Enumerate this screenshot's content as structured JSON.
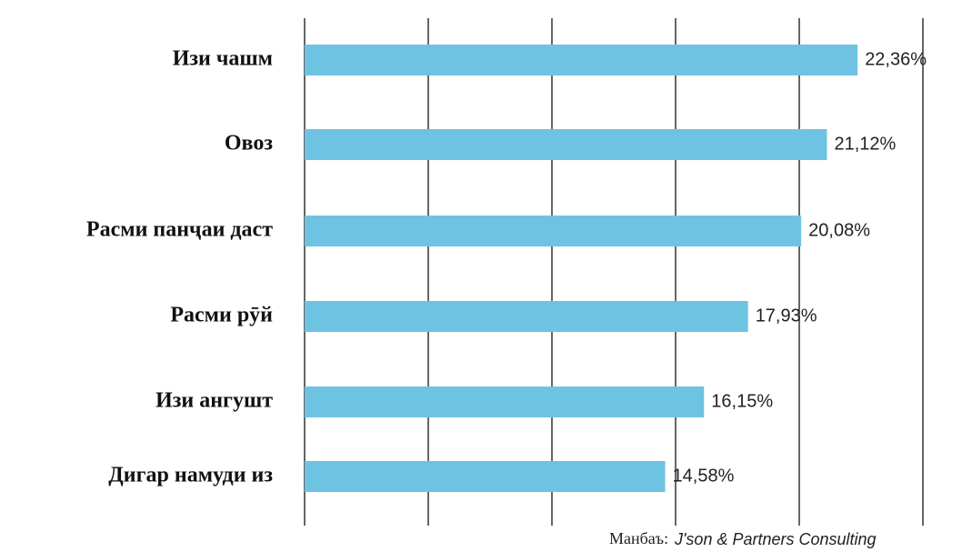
{
  "chart_data": {
    "type": "hbar",
    "categories": [
      "Изи чашм",
      "Овоз",
      "Расми панҷаи даст",
      "Расми рӯй",
      "Изи ангушт",
      "Дигар намуди из"
    ],
    "values": [
      22.36,
      21.12,
      20.08,
      17.93,
      16.15,
      14.58
    ],
    "value_labels": [
      "22,36%",
      "21,12%",
      "20,08%",
      "17,93%",
      "16,15%",
      "14,58%"
    ],
    "color": "#6fc3e2",
    "xlim": [
      0,
      25
    ],
    "xticks": [
      0,
      5,
      10,
      15,
      20,
      25
    ],
    "grid": true,
    "source_label": "Манбаъ:",
    "source": "J'son & Partners Consulting"
  }
}
